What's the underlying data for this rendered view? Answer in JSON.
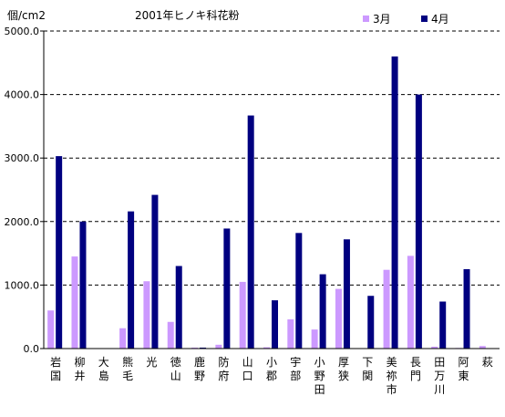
{
  "chart_data": {
    "type": "bar",
    "title": "2001年ヒノキ科花粉",
    "ylabel": "個/cm2",
    "xlabel": "",
    "ylim": [
      0,
      5000
    ],
    "ytick_labels": [
      "0.0",
      "1000.0",
      "2000.0",
      "3000.0",
      "4000.0",
      "5000.0"
    ],
    "grid": "horizontal dashed",
    "legend": "top-right",
    "categories": [
      "岩国",
      "柳井",
      "大島",
      "熊毛",
      "光",
      "徳山",
      "鹿野",
      "防府",
      "山口",
      "小郡",
      "宇部",
      "小野田",
      "厚狭",
      "下関",
      "美祢市",
      "長門",
      "田万川",
      "阿東",
      "萩"
    ],
    "series": [
      {
        "name": "3月",
        "color": "#cc99ff",
        "values": [
          600,
          1450,
          0,
          320,
          1060,
          420,
          15,
          60,
          1050,
          20,
          460,
          300,
          940,
          0,
          1240,
          1460,
          30,
          10,
          40
        ]
      },
      {
        "name": "4月",
        "color": "#000080",
        "values": [
          3030,
          2000,
          0,
          2160,
          2420,
          1300,
          15,
          1890,
          3670,
          760,
          1820,
          1170,
          1720,
          830,
          4600,
          4000,
          740,
          1250,
          0
        ]
      }
    ]
  }
}
